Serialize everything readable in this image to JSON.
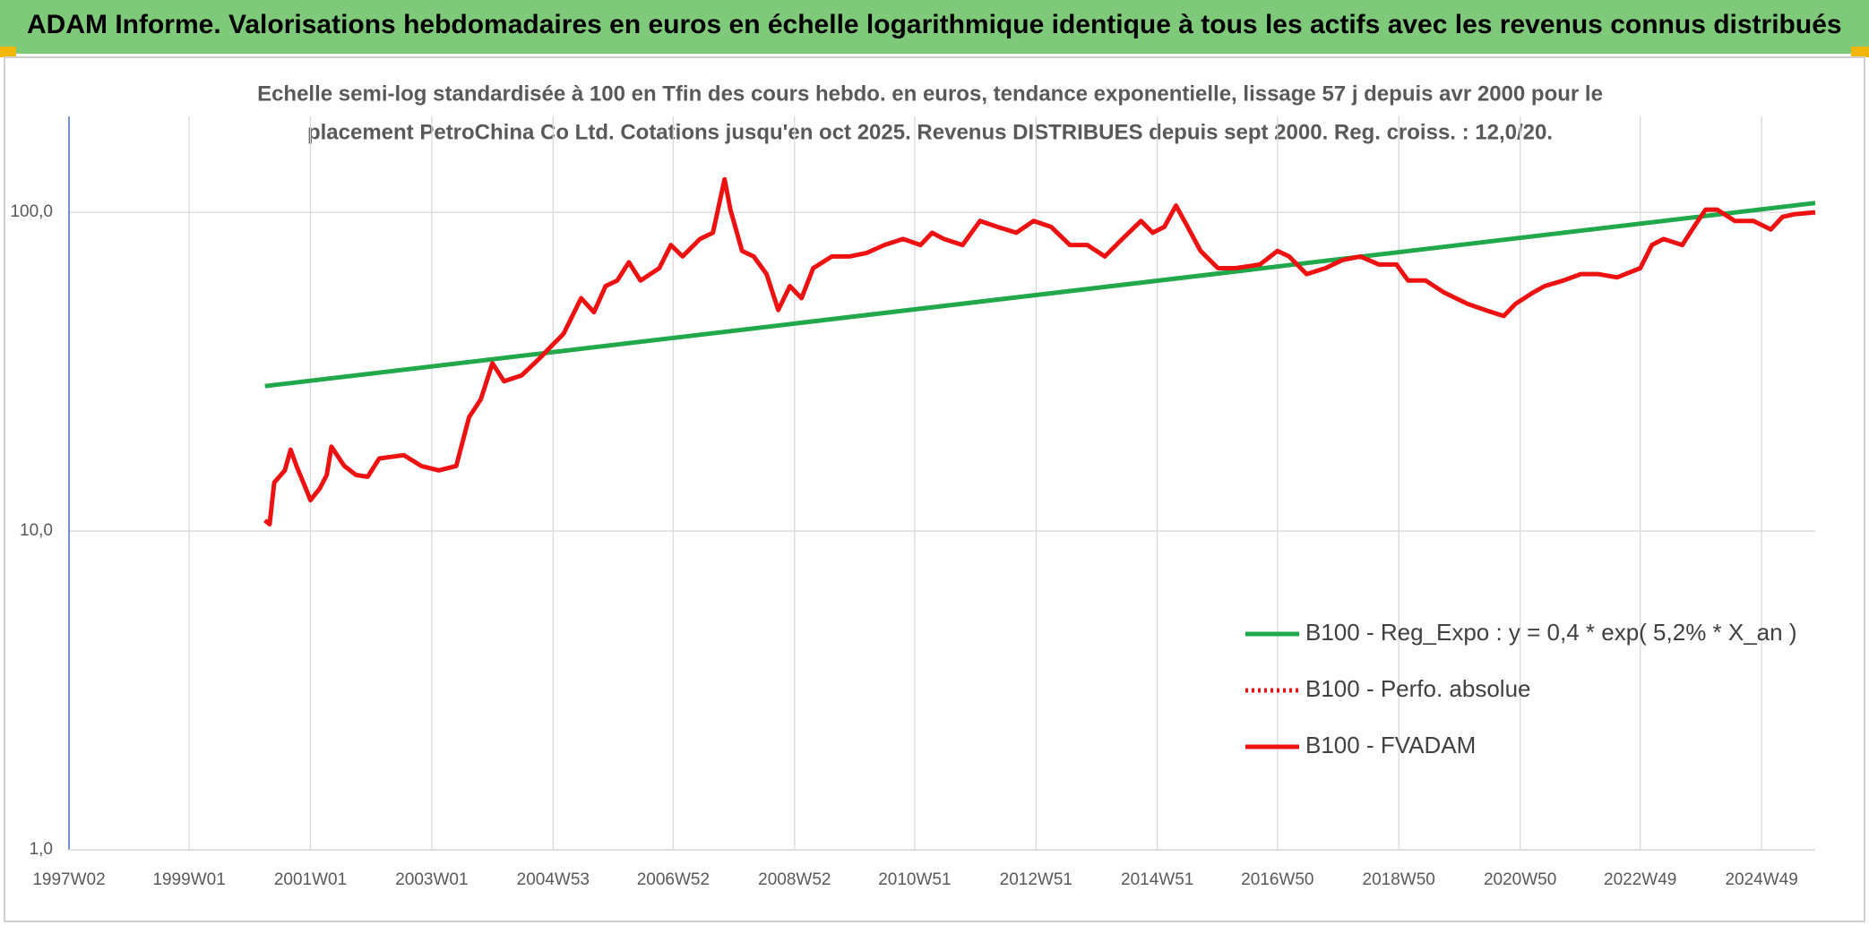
{
  "header": {
    "title": "ADAM Informe. Valorisations hebdomadaires en euros en échelle logarithmique identique à tous les actifs avec les revenus connus distribués"
  },
  "chart_data": {
    "type": "line",
    "subtitle": [
      "Echelle semi-log standardisée à 100 en Tfin des cours hebdo. en euros, tendance exponentielle, lissage 57 j depuis avr 2000 pour le",
      "placement PetroChina Co Ltd. Cotations jusqu'en oct 2025. Revenus DISTRIBUES depuis sept 2000. Reg. croiss. : 12,0/20."
    ],
    "log_scale": true,
    "grid": true,
    "legend_position": "right",
    "xlim": [
      "1997W02",
      "2025W43"
    ],
    "xticks": [
      "1997W02",
      "1999W01",
      "2001W01",
      "2003W01",
      "2004W53",
      "2006W52",
      "2008W52",
      "2010W51",
      "2012W51",
      "2014W51",
      "2016W50",
      "2018W50",
      "2020W50",
      "2022W49",
      "2024W49"
    ],
    "ylim": [
      1,
      200
    ],
    "yticks": [
      {
        "value": 1,
        "label": "1,0"
      },
      {
        "value": 10,
        "label": "10,0"
      },
      {
        "value": 100,
        "label": "100,0"
      }
    ],
    "series": [
      {
        "name": "B100 - Reg_Expo : y = 0,4 * exp( 5,2% *  X_an )",
        "color": "#21a84a",
        "style": "solid",
        "x": [
          "2000W14",
          "2025W43"
        ],
        "values": [
          28.5,
          107
        ]
      },
      {
        "name": "B100 - Perfo. absolue",
        "color": "#ee1111",
        "style": "dotted",
        "x": [
          "2000W14",
          "2000W18",
          "2000W22",
          "2000W31",
          "2000W36",
          "2000W41",
          "2000W49",
          "2001W01",
          "2001W09",
          "2001W15",
          "2001W19",
          "2001W30",
          "2001W40",
          "2001W50",
          "2002W08",
          "2002W29",
          "2002W44",
          "2003W07",
          "2003W22",
          "2003W33",
          "2003W43",
          "2004W01",
          "2004W11",
          "2004W26",
          "2004W42",
          "2004W52",
          "2005W10",
          "2005W25",
          "2005W36",
          "2005W46",
          "2006W04",
          "2006W14",
          "2006W24",
          "2006W40",
          "2006W50",
          "2007W08",
          "2007W23",
          "2007W34",
          "2007W44",
          "2007W49",
          "2008W07",
          "2008W17",
          "2008W28",
          "2008W38",
          "2008W48",
          "2009W06",
          "2009W16",
          "2009W32",
          "2009W47",
          "2010W10",
          "2010W25",
          "2010W41",
          "2011W04",
          "2011W14",
          "2011W24",
          "2011W40",
          "2012W03",
          "2012W18",
          "2012W34",
          "2012W49",
          "2013W12",
          "2013W28",
          "2013W43",
          "2014W06",
          "2014W21",
          "2014W37",
          "2014W47",
          "2015W05",
          "2015W15",
          "2015W25",
          "2015W36",
          "2015W51",
          "2016W14",
          "2016W35",
          "2016W50",
          "2017W08",
          "2017W23",
          "2017W39",
          "2018W02",
          "2018W17",
          "2018W33",
          "2018W48",
          "2019W06",
          "2019W21",
          "2019W37",
          "2020W05",
          "2020W20",
          "2020W36",
          "2020W46",
          "2021W09",
          "2021W19",
          "2021W35",
          "2021W50",
          "2022W13",
          "2022W29",
          "2022W49",
          "2023W07",
          "2023W17",
          "2023W33",
          "2023W43",
          "2024W01",
          "2024W11",
          "2024W26",
          "2024W42",
          "2025W05",
          "2025W15",
          "2025W25",
          "2025W43"
        ],
        "values": [
          10.8,
          10.5,
          14.2,
          15.5,
          18,
          16,
          13.6,
          12.5,
          13.6,
          15,
          18.4,
          16,
          15,
          14.8,
          16.9,
          17.3,
          16,
          15.5,
          16,
          22.8,
          25.9,
          33.6,
          29.5,
          30.8,
          35,
          38.2,
          41.6,
          53.8,
          48.6,
          58.7,
          61.1,
          69.7,
          61.1,
          66.8,
          79,
          72.7,
          82.5,
          86.3,
          127,
          102,
          75.7,
          72.7,
          64,
          49.4,
          58.7,
          53.8,
          66.8,
          72.7,
          72.7,
          74.6,
          79,
          82.5,
          79,
          86.3,
          82.5,
          79,
          94,
          90,
          86.3,
          94,
          90,
          79,
          79,
          72.7,
          82.5,
          94,
          86.3,
          90,
          105,
          90,
          75.7,
          66.8,
          66.8,
          68.6,
          75.7,
          72.7,
          64,
          66.8,
          70.9,
          72.7,
          68.6,
          68.6,
          61.1,
          61.1,
          56,
          51.6,
          49.4,
          47.3,
          51.6,
          56,
          58.7,
          61.1,
          64,
          64,
          62.5,
          66.8,
          79,
          82.5,
          79,
          90,
          102,
          102,
          94,
          94,
          88.4,
          96.8,
          98.6,
          100
        ]
      },
      {
        "name": "B100 - FVADAM",
        "color": "#ee1111",
        "style": "solid",
        "x": [
          "2000W14",
          "2000W18",
          "2000W22",
          "2000W31",
          "2000W36",
          "2000W41",
          "2000W49",
          "2001W01",
          "2001W09",
          "2001W15",
          "2001W19",
          "2001W30",
          "2001W40",
          "2001W50",
          "2002W08",
          "2002W29",
          "2002W44",
          "2003W07",
          "2003W22",
          "2003W33",
          "2003W43",
          "2004W01",
          "2004W11",
          "2004W26",
          "2004W42",
          "2004W52",
          "2005W10",
          "2005W25",
          "2005W36",
          "2005W46",
          "2006W04",
          "2006W14",
          "2006W24",
          "2006W40",
          "2006W50",
          "2007W08",
          "2007W23",
          "2007W34",
          "2007W44",
          "2007W49",
          "2008W07",
          "2008W17",
          "2008W28",
          "2008W38",
          "2008W48",
          "2009W06",
          "2009W16",
          "2009W32",
          "2009W47",
          "2010W10",
          "2010W25",
          "2010W41",
          "2011W04",
          "2011W14",
          "2011W24",
          "2011W40",
          "2012W03",
          "2012W18",
          "2012W34",
          "2012W49",
          "2013W12",
          "2013W28",
          "2013W43",
          "2014W06",
          "2014W21",
          "2014W37",
          "2014W47",
          "2015W05",
          "2015W15",
          "2015W25",
          "2015W36",
          "2015W51",
          "2016W14",
          "2016W35",
          "2016W50",
          "2017W08",
          "2017W23",
          "2017W39",
          "2018W02",
          "2018W17",
          "2018W33",
          "2018W48",
          "2019W06",
          "2019W21",
          "2019W37",
          "2020W05",
          "2020W20",
          "2020W36",
          "2020W46",
          "2021W09",
          "2021W19",
          "2021W35",
          "2021W50",
          "2022W13",
          "2022W29",
          "2022W49",
          "2023W07",
          "2023W17",
          "2023W33",
          "2023W43",
          "2024W01",
          "2024W11",
          "2024W26",
          "2024W42",
          "2025W05",
          "2025W15",
          "2025W25",
          "2025W43"
        ],
        "values": [
          10.8,
          10.5,
          14.2,
          15.5,
          18,
          16,
          13.6,
          12.5,
          13.6,
          15,
          18.4,
          16,
          15,
          14.8,
          16.9,
          17.3,
          16,
          15.5,
          16,
          22.8,
          25.9,
          33.6,
          29.5,
          30.8,
          35,
          38.2,
          41.6,
          53.8,
          48.6,
          58.7,
          61.1,
          69.7,
          61.1,
          66.8,
          79,
          72.7,
          82.5,
          86.3,
          127,
          102,
          75.7,
          72.7,
          64,
          49.4,
          58.7,
          53.8,
          66.8,
          72.7,
          72.7,
          74.6,
          79,
          82.5,
          79,
          86.3,
          82.5,
          79,
          94,
          90,
          86.3,
          94,
          90,
          79,
          79,
          72.7,
          82.5,
          94,
          86.3,
          90,
          105,
          90,
          75.7,
          66.8,
          66.8,
          68.6,
          75.7,
          72.7,
          64,
          66.8,
          70.9,
          72.7,
          68.6,
          68.6,
          61.1,
          61.1,
          56,
          51.6,
          49.4,
          47.3,
          51.6,
          56,
          58.7,
          61.1,
          64,
          64,
          62.5,
          66.8,
          79,
          82.5,
          79,
          90,
          102,
          102,
          94,
          94,
          88.4,
          96.8,
          98.6,
          100
        ]
      }
    ]
  }
}
